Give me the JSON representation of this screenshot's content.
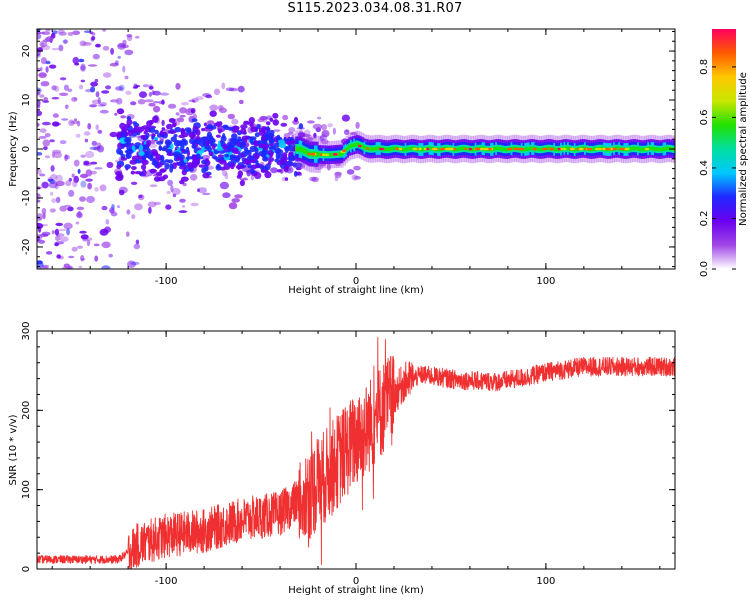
{
  "figure": {
    "title": "S115.2023.034.08.31.R07"
  },
  "chart_data": [
    {
      "type": "heatmap",
      "xlabel": "Height of straight line (km)",
      "ylabel": "Frequency (Hz)",
      "xlim": [
        -168,
        168
      ],
      "ylim": [
        -24.5,
        24.5
      ],
      "x_ticks": [
        -100,
        0,
        100
      ],
      "x_tick_labels": [
        "-100",
        "0",
        "100"
      ],
      "y_ticks": [
        -20,
        -10,
        0,
        10,
        20
      ],
      "y_tick_labels": [
        "-20",
        "-10",
        "0",
        "10",
        "20"
      ],
      "grid": false,
      "trace": [
        {
          "x": -168,
          "f": 0.0
        },
        {
          "x": -30,
          "f": 0.0
        },
        {
          "x": -25,
          "f": -1.0
        },
        {
          "x": -15,
          "f": -1.2
        },
        {
          "x": -8,
          "f": -1.0
        },
        {
          "x": -4,
          "f": 0.5
        },
        {
          "x": 0,
          "f": 1.0
        },
        {
          "x": 4,
          "f": 0.2
        },
        {
          "x": 10,
          "f": 0.0
        },
        {
          "x": 168,
          "f": 0.0
        }
      ],
      "colorbar": {
        "label": "Normalized spectral amplitude",
        "range": [
          0,
          0.95
        ],
        "ticks": [
          0.0,
          0.2,
          0.4,
          0.6,
          0.8
        ],
        "tick_labels": [
          "0.0",
          "0.2",
          "0.4",
          "0.6",
          "0.8"
        ],
        "colors": [
          "#ffffff",
          "#a046e6",
          "#6a00f0",
          "#1e28ff",
          "#00c8ff",
          "#00e0a0",
          "#22e000",
          "#c8e600",
          "#ffc800",
          "#ff5a00",
          "#ff0060"
        ]
      }
    },
    {
      "type": "line",
      "xlabel": "Height of straight line (km)",
      "ylabel": "SNR (10 * v/v)",
      "xlim": [
        -168,
        168
      ],
      "ylim": [
        0,
        300
      ],
      "x_ticks": [
        -100,
        0,
        100
      ],
      "x_tick_labels": [
        "-100",
        "0",
        "100"
      ],
      "y_ticks": [
        0,
        100,
        200,
        300
      ],
      "y_tick_labels": [
        "0",
        "100",
        "200",
        "300"
      ],
      "grid": false,
      "series": [
        {
          "color": "#f03030",
          "envelope": [
            {
              "x": -168,
              "y": 12
            },
            {
              "x": -125,
              "y": 12
            },
            {
              "x": -115,
              "y": 30
            },
            {
              "x": -100,
              "y": 42
            },
            {
              "x": -80,
              "y": 48
            },
            {
              "x": -60,
              "y": 62
            },
            {
              "x": -40,
              "y": 70
            },
            {
              "x": -25,
              "y": 95
            },
            {
              "x": -15,
              "y": 120
            },
            {
              "x": -5,
              "y": 150
            },
            {
              "x": 5,
              "y": 175
            },
            {
              "x": 10,
              "y": 190
            },
            {
              "x": 15,
              "y": 205
            },
            {
              "x": 20,
              "y": 218
            },
            {
              "x": 25,
              "y": 235
            },
            {
              "x": 35,
              "y": 245
            },
            {
              "x": 55,
              "y": 238
            },
            {
              "x": 75,
              "y": 236
            },
            {
              "x": 90,
              "y": 242
            },
            {
              "x": 100,
              "y": 248
            },
            {
              "x": 120,
              "y": 255
            },
            {
              "x": 150,
              "y": 255
            },
            {
              "x": 168,
              "y": 255
            }
          ]
        }
      ]
    }
  ]
}
